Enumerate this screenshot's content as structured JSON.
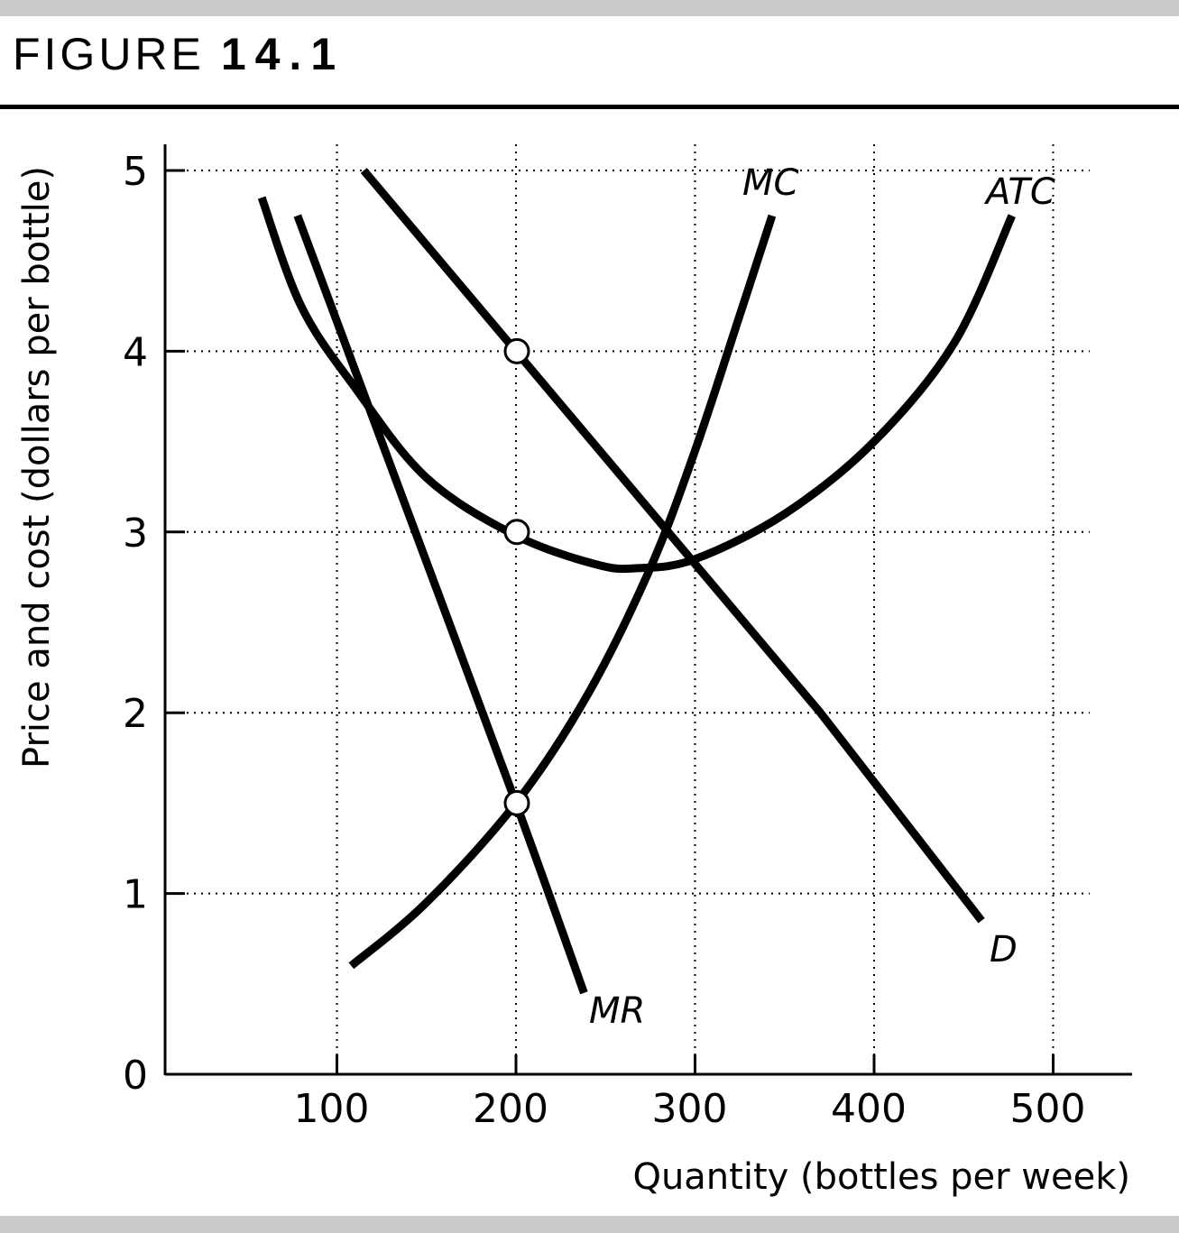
{
  "figure": {
    "prefix": "FIGURE",
    "number": "14.1"
  },
  "chart_data": {
    "type": "line",
    "xlabel": "Quantity (bottles per week)",
    "ylabel": "Price and cost (dollars per bottle)",
    "xlim": [
      0,
      550
    ],
    "ylim": [
      0,
      5
    ],
    "x_ticks": [
      100,
      200,
      300,
      400,
      500
    ],
    "y_ticks": [
      0,
      1,
      2,
      3,
      4,
      5
    ],
    "grid": true,
    "series": [
      {
        "name": "D",
        "points": [
          [
            115,
            5.0
          ],
          [
            200,
            4.0
          ],
          [
            285,
            3.0
          ],
          [
            370,
            2.0
          ],
          [
            460,
            0.85
          ]
        ]
      },
      {
        "name": "MR",
        "points": [
          [
            78,
            4.75
          ],
          [
            125,
            3.5
          ],
          [
            200,
            1.5
          ],
          [
            238,
            0.45
          ]
        ]
      },
      {
        "name": "MC",
        "points": [
          [
            108,
            0.6
          ],
          [
            150,
            0.95
          ],
          [
            200,
            1.5
          ],
          [
            240,
            2.1
          ],
          [
            275,
            2.8
          ],
          [
            300,
            3.45
          ],
          [
            325,
            4.2
          ],
          [
            343,
            4.75
          ]
        ]
      },
      {
        "name": "ATC",
        "points": [
          [
            58,
            4.85
          ],
          [
            80,
            4.25
          ],
          [
            110,
            3.8
          ],
          [
            150,
            3.3
          ],
          [
            200,
            2.98
          ],
          [
            245,
            2.82
          ],
          [
            268,
            2.8
          ],
          [
            300,
            2.85
          ],
          [
            350,
            3.1
          ],
          [
            400,
            3.5
          ],
          [
            445,
            4.05
          ],
          [
            477,
            4.75
          ]
        ]
      }
    ],
    "markers": [
      {
        "x": 200,
        "y": 4.0
      },
      {
        "x": 200,
        "y": 3.0
      },
      {
        "x": 200,
        "y": 1.5
      }
    ]
  }
}
